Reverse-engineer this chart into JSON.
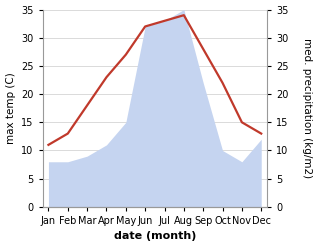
{
  "months": [
    "Jan",
    "Feb",
    "Mar",
    "Apr",
    "May",
    "Jun",
    "Jul",
    "Aug",
    "Sep",
    "Oct",
    "Nov",
    "Dec"
  ],
  "temperature": [
    11,
    13,
    18,
    23,
    27,
    32,
    33,
    34,
    28,
    22,
    15,
    13
  ],
  "precipitation": [
    8,
    8,
    9,
    11,
    15,
    32,
    33,
    35,
    22,
    10,
    8,
    12
  ],
  "temp_color": "#c0392b",
  "precip_fill_color": "#c5d4f0",
  "background_color": "#ffffff",
  "ylim_left": [
    0,
    35
  ],
  "ylim_right": [
    0,
    35
  ],
  "ylabel_left": "max temp (C)",
  "ylabel_right": "med. precipitation (kg/m2)",
  "xlabel": "date (month)",
  "yticks": [
    0,
    5,
    10,
    15,
    20,
    25,
    30,
    35
  ],
  "temp_linewidth": 1.6,
  "xlabel_fontsize": 8,
  "ylabel_fontsize": 7.5,
  "tick_fontsize": 7,
  "grid_color": "#cccccc",
  "spine_color": "#999999"
}
